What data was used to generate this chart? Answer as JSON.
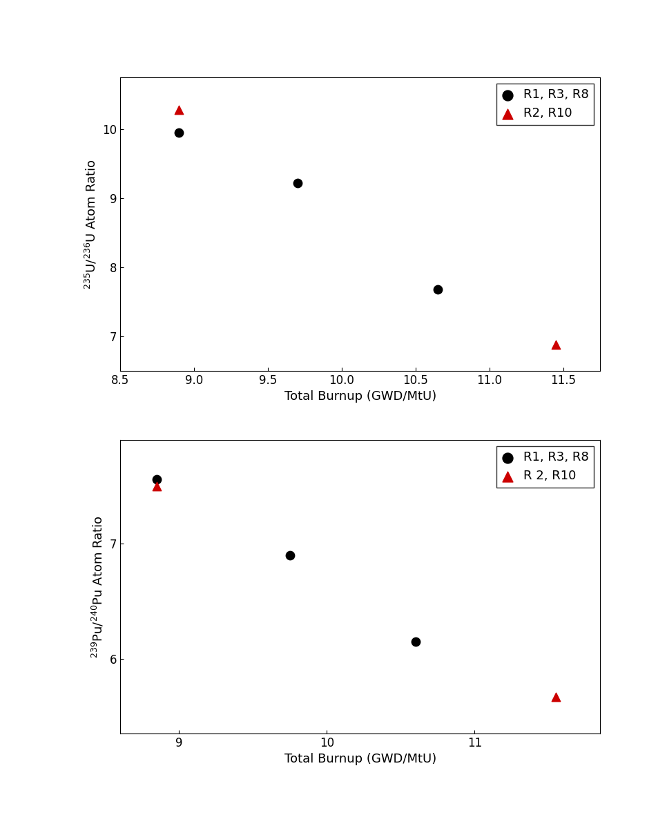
{
  "plot1": {
    "black_x": [
      8.9,
      9.7,
      10.65
    ],
    "black_y": [
      9.95,
      9.22,
      7.68
    ],
    "red_x": [
      8.9,
      11.45
    ],
    "red_y": [
      10.28,
      6.88
    ],
    "xlabel": "Total Burnup (GWD/MtU)",
    "ylabel": "$^{235}$U/$^{236}$U Atom Ratio",
    "xlim": [
      8.5,
      11.75
    ],
    "ylim": [
      6.5,
      10.75
    ],
    "yticks": [
      7,
      8,
      9,
      10
    ],
    "xticks": [
      8.5,
      9.0,
      9.5,
      10.0,
      10.5,
      11.0,
      11.5
    ],
    "legend_black": "R1, R3, R8",
    "legend_red": "R2, R10"
  },
  "plot2": {
    "black_x": [
      8.85,
      9.75,
      10.6
    ],
    "black_y": [
      7.56,
      6.9,
      6.15
    ],
    "red_x": [
      8.85,
      11.55
    ],
    "red_y": [
      7.5,
      5.67
    ],
    "xlabel": "Total Burnup (GWD/MtU)",
    "ylabel": "$^{239}$Pu/$^{240}$Pu Atom Ratio",
    "xlim": [
      8.6,
      11.85
    ],
    "ylim": [
      5.35,
      7.9
    ],
    "yticks": [
      6,
      7
    ],
    "xticks": [
      9,
      10,
      11
    ],
    "legend_black": "R1, R3, R8",
    "legend_red": "R 2, R10"
  },
  "marker_size": 80,
  "black_color": "#000000",
  "red_color": "#cc0000",
  "background_color": "#ffffff",
  "font_size": 13,
  "tick_font_size": 12
}
